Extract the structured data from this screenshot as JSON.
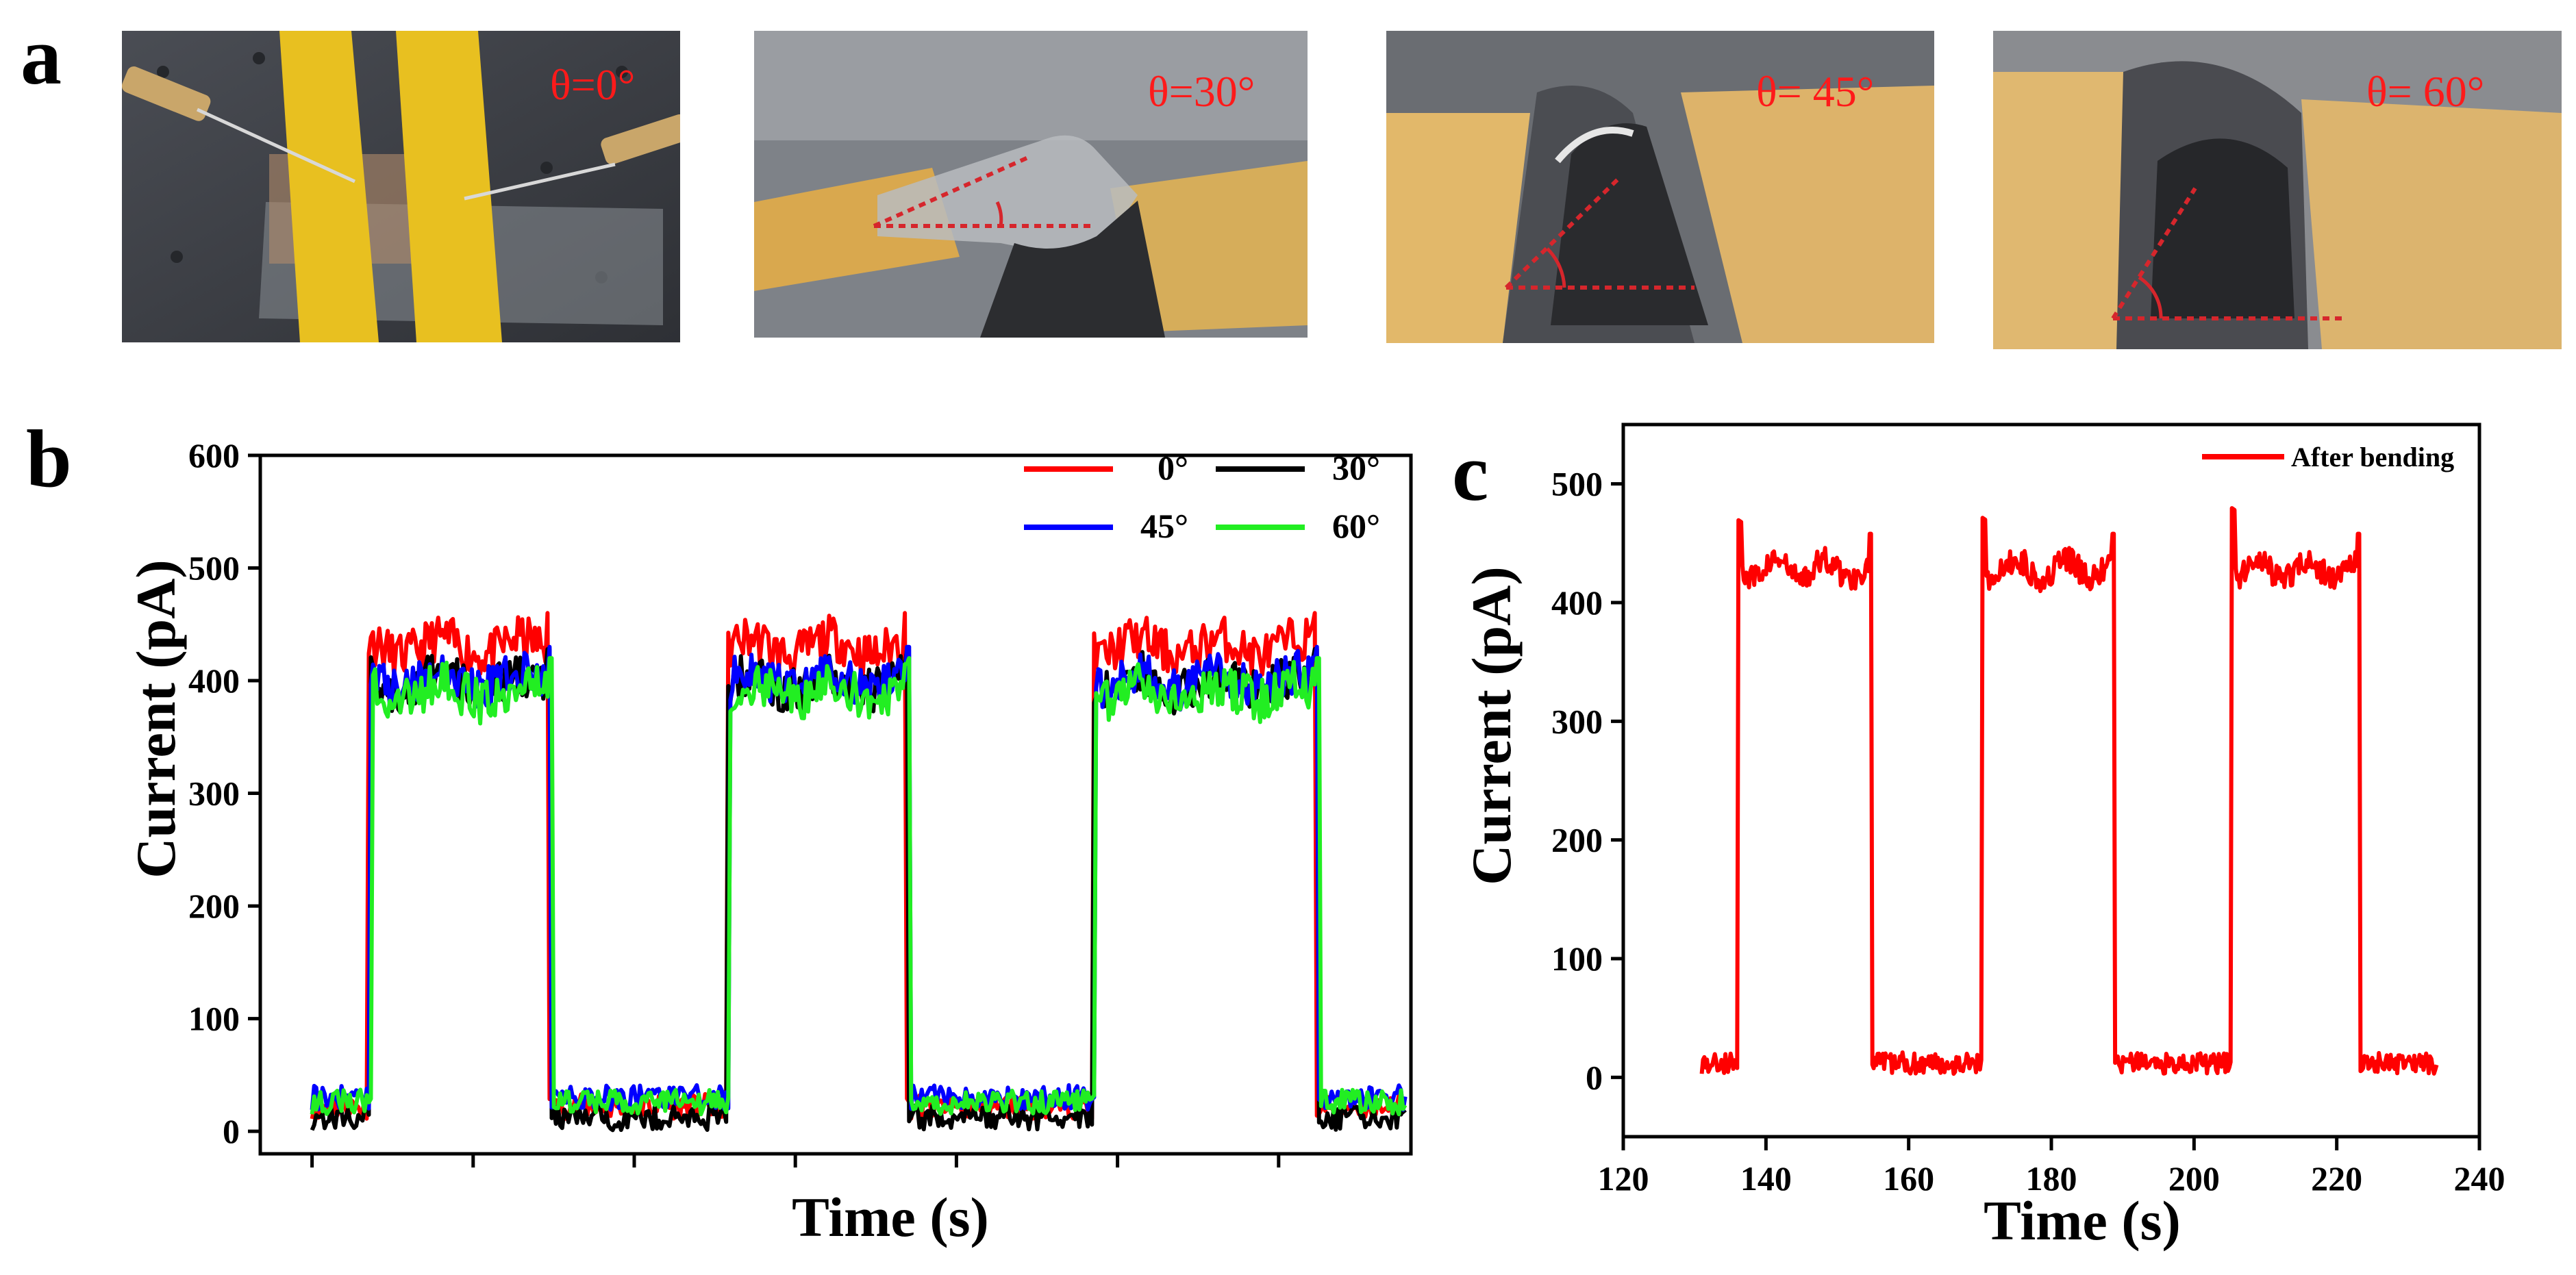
{
  "panels": {
    "a": "a",
    "b": "b",
    "c": "c"
  },
  "photos": [
    {
      "angle_label": "θ=0°"
    },
    {
      "angle_label": "θ=30°"
    },
    {
      "angle_label": "θ= 45°"
    },
    {
      "angle_label": "θ= 60°"
    }
  ],
  "colors": {
    "red": "#ff0000",
    "black": "#000000",
    "blue": "#0000ff",
    "green": "#22ee22",
    "annot": "#ff1a1a"
  },
  "chart_data": [
    {
      "id": "b",
      "type": "line",
      "xlabel": "Time (s)",
      "ylabel": "Current (pA)",
      "xlim": [
        0,
        100
      ],
      "ylim": [
        -20,
        600
      ],
      "yticks": [
        0,
        100,
        200,
        300,
        400,
        500,
        600
      ],
      "xticks_unlabeled": [
        4.5,
        18.5,
        32.5,
        46.5,
        60.5,
        74.5,
        88.5
      ],
      "legend": [
        "0°",
        "30°",
        "45°",
        "60°"
      ],
      "series": [
        {
          "name": "0°",
          "color": "#ff0000",
          "low": 22,
          "high": 430,
          "on": [
            [
              9.3,
              25.1
            ],
            [
              40.5,
              56.2
            ],
            [
              72.3,
              91.8
            ]
          ]
        },
        {
          "name": "30°",
          "color": "#000000",
          "low": 12,
          "high": 398,
          "on": [
            [
              9.5,
              25.2
            ],
            [
              40.6,
              56.3
            ],
            [
              72.4,
              91.9
            ]
          ]
        },
        {
          "name": "45°",
          "color": "#0000ff",
          "low": 30,
          "high": 400,
          "on": [
            [
              9.6,
              25.3
            ],
            [
              40.7,
              56.4
            ],
            [
              72.5,
              92.0
            ]
          ]
        },
        {
          "name": "60°",
          "color": "#22ee22",
          "low": 26,
          "high": 390,
          "on": [
            [
              9.7,
              25.4
            ],
            [
              40.8,
              56.5
            ],
            [
              72.6,
              92.1
            ]
          ]
        }
      ],
      "x_start": 4.5,
      "x_end": 102
    },
    {
      "id": "c",
      "type": "line",
      "xlabel": "Time (s)",
      "ylabel": "Current (pA)",
      "xlim": [
        120,
        240
      ],
      "ylim": [
        -50,
        550
      ],
      "xticks": [
        120,
        140,
        160,
        180,
        200,
        220,
        240
      ],
      "yticks": [
        0,
        100,
        200,
        300,
        400,
        500
      ],
      "legend": [
        "After bending"
      ],
      "series": [
        {
          "name": "After bending",
          "color": "#ff0000",
          "low": 12,
          "high": 428,
          "on": [
            [
              136,
              154.8
            ],
            [
              170.2,
              188.8
            ],
            [
              205.2,
              223.2
            ]
          ],
          "peaks": [
            470,
            472,
            480
          ],
          "x_start": 131,
          "x_end": 234
        }
      ]
    }
  ]
}
